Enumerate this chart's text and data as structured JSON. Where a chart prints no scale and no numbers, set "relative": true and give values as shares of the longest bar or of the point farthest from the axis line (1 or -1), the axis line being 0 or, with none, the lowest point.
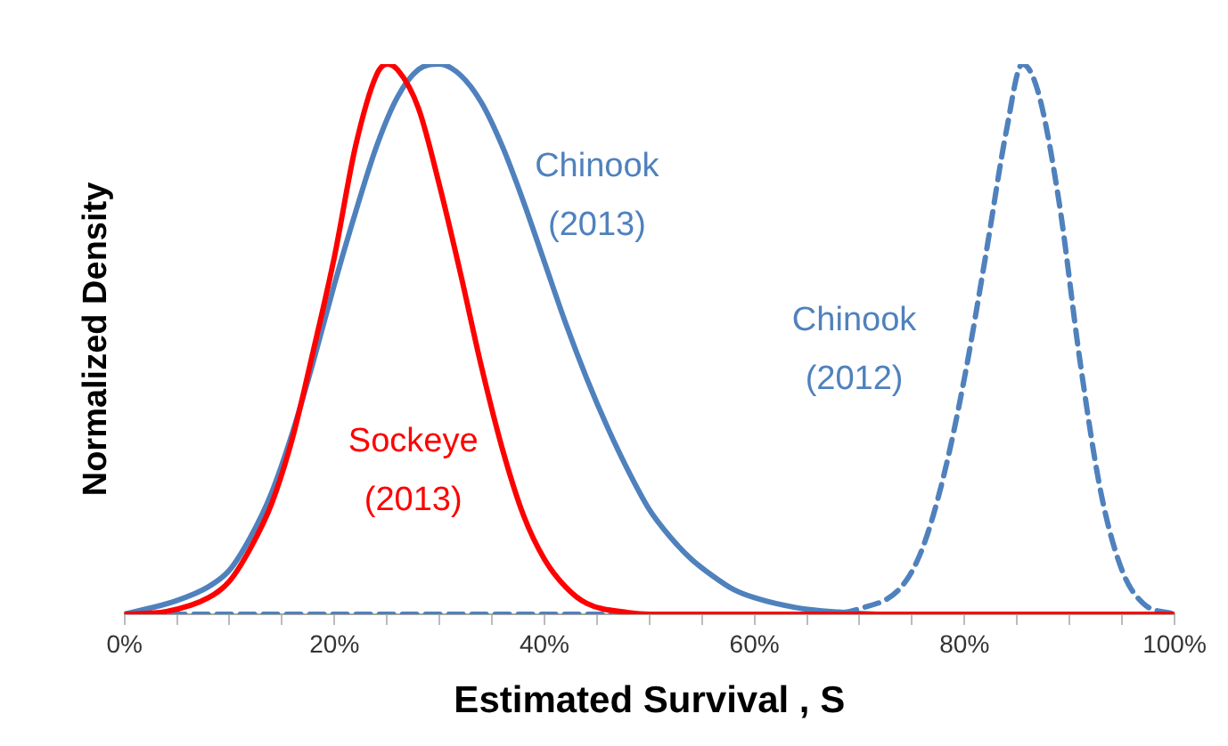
{
  "chart_data": {
    "type": "line",
    "relative": true,
    "xlabel": "Estimated Survival , S",
    "ylabel": "Normalized Density",
    "xlim": [
      0,
      100
    ],
    "xticks": [
      {
        "value": 0,
        "label": "0%"
      },
      {
        "value": 5,
        "label": null
      },
      {
        "value": 10,
        "label": null
      },
      {
        "value": 15,
        "label": null
      },
      {
        "value": 20,
        "label": "20%"
      },
      {
        "value": 25,
        "label": null
      },
      {
        "value": 30,
        "label": null
      },
      {
        "value": 35,
        "label": null
      },
      {
        "value": 40,
        "label": "40%"
      },
      {
        "value": 45,
        "label": null
      },
      {
        "value": 50,
        "label": null
      },
      {
        "value": 55,
        "label": null
      },
      {
        "value": 60,
        "label": "60%"
      },
      {
        "value": 65,
        "label": null
      },
      {
        "value": 70,
        "label": null
      },
      {
        "value": 75,
        "label": null
      },
      {
        "value": 80,
        "label": "80%"
      },
      {
        "value": 85,
        "label": null
      },
      {
        "value": 90,
        "label": null
      },
      {
        "value": 95,
        "label": null
      },
      {
        "value": 100,
        "label": "100%"
      }
    ],
    "grid": false,
    "legend": false,
    "marker": "none",
    "series": [
      {
        "name": "Chinook (2013)",
        "color": "#4f81bd",
        "line_style": "solid",
        "x": [
          0,
          5,
          8,
          10,
          12,
          14,
          16,
          18,
          20,
          22,
          24,
          26,
          28,
          30,
          32,
          34,
          36,
          38,
          40,
          42,
          44,
          46,
          48,
          50,
          52,
          54,
          56,
          58,
          60,
          64,
          68,
          72,
          100
        ],
        "values": [
          0,
          0.025,
          0.05,
          0.08,
          0.14,
          0.22,
          0.33,
          0.46,
          0.6,
          0.73,
          0.85,
          0.94,
          0.99,
          1,
          0.98,
          0.93,
          0.85,
          0.75,
          0.64,
          0.53,
          0.43,
          0.34,
          0.26,
          0.19,
          0.14,
          0.1,
          0.07,
          0.045,
          0.03,
          0.012,
          0.004,
          0,
          0
        ]
      },
      {
        "name": "Sockeye (2013)",
        "color": "#ff0000",
        "line_style": "solid",
        "x": [
          0,
          4,
          8,
          10,
          12,
          14,
          16,
          18,
          20,
          22,
          24,
          25,
          26,
          28,
          30,
          32,
          34,
          36,
          38,
          40,
          42,
          44,
          48,
          50,
          100
        ],
        "values": [
          0,
          0.005,
          0.03,
          0.06,
          0.12,
          0.2,
          0.32,
          0.48,
          0.65,
          0.85,
          0.98,
          1,
          0.99,
          0.92,
          0.78,
          0.62,
          0.45,
          0.3,
          0.18,
          0.1,
          0.05,
          0.02,
          0.003,
          0,
          0
        ]
      },
      {
        "name": "Chinook (2012)",
        "color": "#4f81bd",
        "line_style": "dashed",
        "x": [
          0,
          66,
          70,
          74,
          76,
          78,
          80,
          82,
          84,
          85.5,
          87,
          89,
          91,
          93,
          95,
          97,
          100
        ],
        "values": [
          0,
          0,
          0.01,
          0.05,
          0.12,
          0.25,
          0.43,
          0.65,
          0.88,
          1,
          0.95,
          0.75,
          0.46,
          0.22,
          0.08,
          0.02,
          0
        ]
      }
    ]
  }
}
